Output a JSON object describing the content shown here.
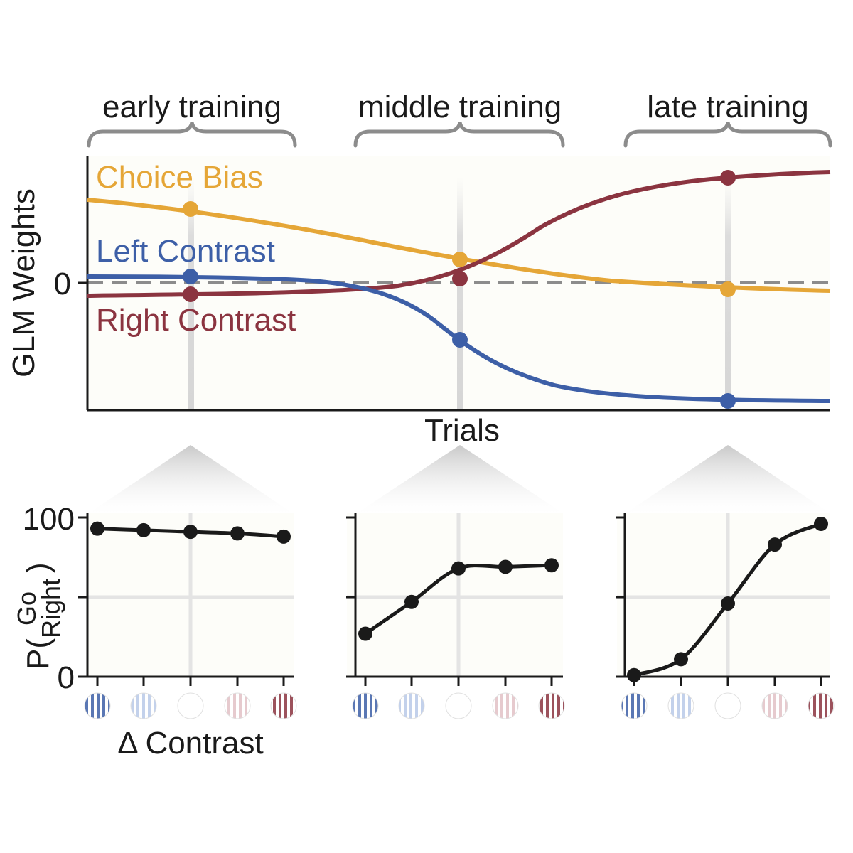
{
  "stages": [
    "early training",
    "middle training",
    "late training"
  ],
  "colors": {
    "choice_bias": "#e5a637",
    "left_contrast": "#3d5fa7",
    "right_contrast": "#8b3440",
    "curve": "#1a1a1a",
    "brace": "#8c8c8c",
    "panel_bg": "#fdfdf9"
  },
  "chart_data": [
    {
      "type": "line",
      "ylabel": "GLM Weights",
      "xlabel": "Trials",
      "ytick_label": "0",
      "zero_line": "dashed",
      "legend": "inline",
      "series": [
        {
          "name": "Choice Bias",
          "color": "#e5a637",
          "sample_values": [
            0.62,
            0.2,
            -0.05
          ]
        },
        {
          "name": "Left Contrast",
          "color": "#3d5fa7",
          "sample_values": [
            0.05,
            -0.45,
            -0.93
          ]
        },
        {
          "name": "Right Contrast",
          "color": "#8b3440",
          "sample_values": [
            -0.09,
            0.03,
            0.82
          ]
        }
      ]
    },
    {
      "type": "line",
      "stage": "early training",
      "ylabel": "P(Go Right)",
      "xlabel": "Δ Contrast",
      "yticks": [
        "100",
        "0"
      ],
      "ylim": [
        0,
        100
      ],
      "x": [
        -2,
        -1,
        0,
        1,
        2
      ],
      "values": [
        93,
        92,
        91,
        90,
        88
      ]
    },
    {
      "type": "line",
      "stage": "middle training",
      "x": [
        -2,
        -1,
        0,
        1,
        2
      ],
      "values": [
        27,
        47,
        68,
        69,
        70
      ]
    },
    {
      "type": "line",
      "stage": "late training",
      "x": [
        -2,
        -1,
        0,
        1,
        2
      ],
      "values": [
        1,
        11,
        46,
        83,
        96
      ]
    }
  ],
  "stimulus_icons": [
    "left-strong-grating",
    "left-weak-grating",
    "zero-contrast",
    "right-weak-grating",
    "right-strong-grating"
  ]
}
